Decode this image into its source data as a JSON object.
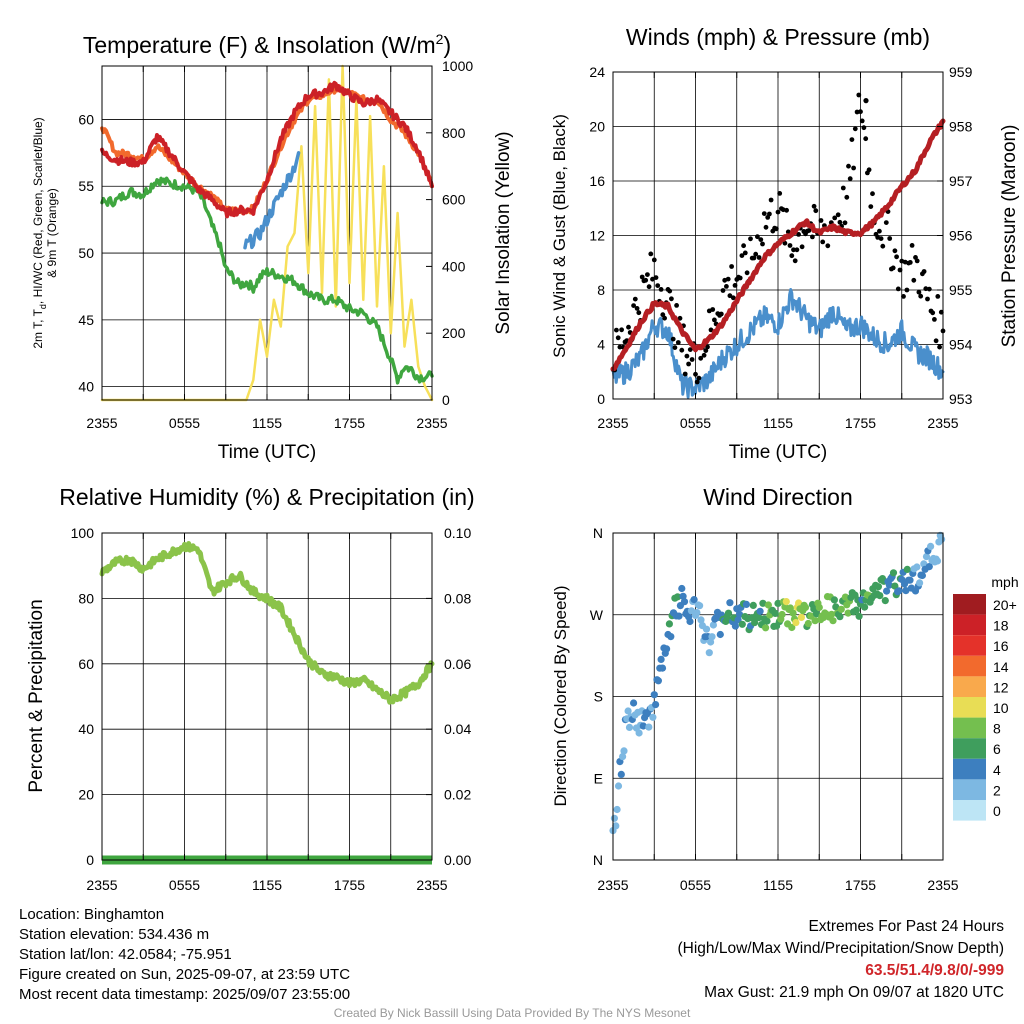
{
  "panels": {
    "temperature": {
      "title_main": "Temperature (F) & Insolation (W/m",
      "title_sup": "2",
      "title_end": ")",
      "ylabel_l1": "2m T, T",
      "ylabel_sub": "d",
      "ylabel_l1b": ", HI/WC (Red, Green, Scarlet/Blue)",
      "ylabel_l2": "& 9m T (Orange)",
      "ylabel_right": "Solar Insolation (Yellow)",
      "xlabel": "Time (UTC)"
    },
    "winds": {
      "title": "Winds (mph) & Pressure (mb)",
      "ylabel_left": "Sonic Wind & Gust (Blue, Black)",
      "ylabel_right": "Station Pressure (Maroon)",
      "xlabel": "Time (UTC)"
    },
    "humidity": {
      "title": "Relative Humidity (%) & Precipitation (in)",
      "ylabel": "Percent & Precipitation"
    },
    "direction": {
      "title": "Wind Direction",
      "ylabel": "Direction (Colored By Speed)",
      "legend_title": "mph",
      "legend_labels": [
        "20+",
        "18",
        "16",
        "14",
        "12",
        "10",
        "8",
        "6",
        "4",
        "2",
        "0"
      ],
      "legend_colors": [
        "#a01c20",
        "#cc2127",
        "#e4322a",
        "#f26a2d",
        "#f9a94c",
        "#e8dd55",
        "#74bf4f",
        "#3f9e5d",
        "#3d7fbf",
        "#7db8e2",
        "#bde5f5"
      ]
    }
  },
  "info": {
    "location": "Location: Binghamton",
    "elevation": "Station elevation: 534.436 m",
    "latlon": "Station lat/lon: 42.0584; -75.951",
    "created": "Figure created on Sun, 2025-09-07, at 23:59 UTC",
    "recent": "Most recent data timestamp: 2025/09/07 23:55:00"
  },
  "extremes": {
    "heading": "Extremes For Past 24 Hours",
    "subheading": "(High/Low/Max Wind/Precipitation/Snow Depth)",
    "values": "63.5/51.4/9.8/0/-999",
    "gust": "Max Gust: 21.9 mph On 09/07 at 1820 UTC"
  },
  "credit": "Created By Nick Bassill Using Data Provided By The NYS Mesonet",
  "chart_data": [
    {
      "type": "line",
      "title": "Temperature (F) & Insolation (W/m2)",
      "xlabel": "Time (UTC)",
      "x_ticks": [
        "2355",
        "0555",
        "1155",
        "1755",
        "2355"
      ],
      "xlim_hours": [
        0,
        24
      ],
      "ylim": [
        39,
        64
      ],
      "y_ticks": [
        40,
        45,
        50,
        55,
        60
      ],
      "y2lim": [
        0,
        1000
      ],
      "y2_ticks": [
        0,
        200,
        400,
        600,
        800,
        1000
      ],
      "colors": {
        "temp": "#cc2127",
        "dewpoint": "#3fa63f",
        "windchill": "#4a8fcc",
        "temp9m": "#f26a2d",
        "solar": "#f7e05a"
      },
      "series": [
        {
          "key": "temp9m",
          "x": [
            0,
            1,
            2,
            3,
            4,
            5,
            6,
            7,
            8,
            9,
            10,
            11,
            12,
            13,
            14,
            15,
            16,
            17,
            18,
            19,
            20,
            21,
            22,
            23,
            24
          ],
          "values": [
            59.5,
            57.5,
            57.4,
            57,
            58,
            57,
            56,
            55,
            54.3,
            53.2,
            53.2,
            53.3,
            55.5,
            58,
            60,
            61.5,
            61.8,
            62.3,
            62,
            61.5,
            61.5,
            60,
            59,
            57.5,
            55
          ]
        },
        {
          "key": "temp",
          "x": [
            0,
            1,
            2,
            3,
            4,
            5,
            6,
            7,
            8,
            9,
            10,
            11,
            12,
            13,
            14,
            15,
            16,
            17,
            18,
            19,
            20,
            21,
            22,
            23,
            24
          ],
          "values": [
            57.5,
            57,
            56.8,
            56.8,
            58.7,
            57.4,
            56,
            54.8,
            54,
            53,
            53.2,
            53.2,
            55.5,
            58.5,
            60.5,
            61.8,
            62,
            62.6,
            61.8,
            61.2,
            61.5,
            60.5,
            59.5,
            57.7,
            55
          ]
        },
        {
          "key": "windchill",
          "x": [
            10.4,
            11,
            11.5,
            12,
            12.5,
            13,
            13.5,
            14,
            14.3
          ],
          "values": [
            50.5,
            51,
            51.5,
            52.5,
            53.5,
            54.5,
            55.5,
            56.5,
            57.5
          ]
        },
        {
          "key": "dewpoint",
          "x": [
            0,
            1,
            2,
            3,
            4,
            5,
            6,
            7,
            7.5,
            8,
            8.5,
            9,
            9.5,
            10,
            10.5,
            11,
            11.5,
            12,
            13,
            14,
            15,
            16,
            17,
            18,
            19,
            20,
            20.5,
            21,
            21.5,
            22,
            22.5,
            23,
            24
          ],
          "values": [
            53.8,
            53.9,
            54.6,
            54.4,
            55.5,
            55.2,
            55,
            54.6,
            53.5,
            52,
            50.8,
            48.8,
            48.2,
            47.6,
            47.8,
            47.4,
            48.2,
            48.6,
            48.3,
            47.9,
            47,
            46.5,
            46.5,
            45.8,
            45.5,
            44.5,
            43.3,
            42,
            40.6,
            41.5,
            41.3,
            40.7,
            40.8
          ]
        },
        {
          "key": "solar",
          "x": [
            0,
            6,
            10.5,
            11,
            11.5,
            12,
            12.5,
            13,
            13.5,
            14,
            14.5,
            15,
            15.5,
            16,
            16.5,
            17,
            17.5,
            18,
            18.5,
            19,
            19.5,
            20,
            20.5,
            21,
            21.5,
            22,
            22.5,
            23,
            23.5,
            24
          ],
          "values": [
            0,
            0,
            0,
            60,
            240,
            130,
            300,
            220,
            460,
            500,
            760,
            380,
            880,
            320,
            960,
            280,
            1000,
            350,
            900,
            300,
            850,
            280,
            700,
            200,
            560,
            160,
            300,
            100,
            40,
            0
          ]
        }
      ]
    },
    {
      "type": "line",
      "title": "Winds (mph) & Pressure (mb)",
      "xlabel": "Time (UTC)",
      "x_ticks": [
        "2355",
        "0555",
        "1155",
        "1755",
        "2355"
      ],
      "xlim_hours": [
        0,
        24
      ],
      "ylim": [
        0,
        24
      ],
      "y_ticks": [
        0,
        4,
        8,
        12,
        16,
        20,
        24
      ],
      "y2lim": [
        953,
        959
      ],
      "y2_ticks": [
        953,
        954,
        955,
        956,
        957,
        958,
        959
      ],
      "colors": {
        "wind": "#4a8fcc",
        "gust": "#000000",
        "pressure": "#b51f23"
      },
      "series": [
        {
          "key": "wind",
          "x": [
            0,
            1,
            2,
            3,
            4,
            5,
            6,
            7,
            8,
            9,
            10,
            11,
            12,
            13,
            14,
            15,
            16,
            17,
            18,
            19,
            20,
            21,
            22,
            23,
            24
          ],
          "values": [
            1.5,
            2,
            3,
            5.5,
            5,
            1,
            0.8,
            1.5,
            3,
            4,
            5,
            6,
            5.5,
            7.5,
            6,
            5,
            6.5,
            5,
            5.5,
            4.5,
            4,
            5,
            3.5,
            3,
            2
          ]
        },
        {
          "key": "gust",
          "x": [
            0,
            1,
            2,
            3,
            4,
            5,
            6,
            7,
            8,
            9,
            10,
            11,
            12,
            13,
            14,
            15,
            16,
            17,
            18,
            19,
            20,
            21,
            22,
            23,
            24
          ],
          "values": [
            3,
            5,
            7.5,
            9.5,
            7,
            4,
            2.5,
            5,
            8,
            9,
            10,
            13,
            14,
            11,
            13,
            12,
            13,
            14.5,
            21.9,
            13.5,
            12,
            9,
            10,
            7,
            5
          ]
        },
        {
          "key": "pressure",
          "x": [
            0,
            1,
            2,
            3,
            4,
            5,
            6,
            7,
            8,
            9,
            10,
            11,
            12,
            13,
            14,
            15,
            16,
            17,
            18,
            19,
            20,
            21,
            22,
            23,
            24
          ],
          "values": [
            953.55,
            953.95,
            954.4,
            954.75,
            954.7,
            954.25,
            953.9,
            954.1,
            954.4,
            954.8,
            955.2,
            955.6,
            955.85,
            956.05,
            956.25,
            956.05,
            956.15,
            956.05,
            956.05,
            956.25,
            956.55,
            956.9,
            957.2,
            957.7,
            958.1
          ]
        }
      ]
    },
    {
      "type": "line",
      "title": "Relative Humidity (%) & Precipitation (in)",
      "x_ticks": [
        "2355",
        "0555",
        "1155",
        "1755",
        "2355"
      ],
      "xlim_hours": [
        0,
        24
      ],
      "ylim": [
        0,
        100
      ],
      "y_ticks": [
        0,
        20,
        40,
        60,
        80,
        100
      ],
      "y2lim": [
        0,
        0.1
      ],
      "y2_ticks": [
        "0.00",
        "0.02",
        "0.04",
        "0.06",
        "0.08",
        "0.10"
      ],
      "colors": {
        "rh": "#8bc34a",
        "precip": "#3fa63f"
      },
      "series": [
        {
          "key": "rh",
          "x": [
            0,
            1,
            2,
            3,
            4,
            5,
            6,
            7,
            8,
            9,
            10,
            11,
            12,
            13,
            14,
            15,
            16,
            17,
            18,
            19,
            20,
            21,
            22,
            23,
            24
          ],
          "values": [
            88,
            91,
            92,
            89,
            92,
            94,
            96,
            95,
            82,
            85,
            87,
            82,
            80,
            77,
            69,
            61,
            57,
            56,
            54,
            55,
            52,
            49,
            51,
            54,
            60
          ]
        },
        {
          "key": "precip",
          "x": [
            0,
            24
          ],
          "values": [
            0,
            0
          ]
        }
      ]
    },
    {
      "type": "scatter",
      "title": "Wind Direction",
      "x_ticks": [
        "2355",
        "0555",
        "1155",
        "1755",
        "2355"
      ],
      "xlim_hours": [
        0,
        24
      ],
      "y_ticks": [
        "N",
        "E",
        "S",
        "W",
        "N"
      ],
      "ylim_degrees": [
        0,
        360
      ],
      "series": [
        {
          "name": "direction",
          "x": [
            0,
            0.5,
            1,
            1.5,
            2,
            2.5,
            3,
            3.5,
            4,
            4.5,
            5,
            5.5,
            6,
            6.5,
            7,
            7.5,
            8,
            8.5,
            9,
            9.5,
            10,
            10.5,
            11,
            11.5,
            12,
            12.5,
            13,
            13.5,
            14,
            14.5,
            15,
            15.5,
            16,
            16.5,
            17,
            17.5,
            18,
            18.5,
            19,
            19.5,
            20,
            20.5,
            21,
            21.5,
            22,
            22.5,
            23,
            23.5,
            24
          ],
          "values": [
            20,
            95,
            155,
            160,
            150,
            155,
            175,
            210,
            240,
            275,
            285,
            270,
            275,
            260,
            235,
            270,
            255,
            270,
            265,
            270,
            265,
            270,
            270,
            268,
            270,
            272,
            268,
            275,
            270,
            268,
            272,
            280,
            275,
            270,
            280,
            285,
            280,
            290,
            288,
            300,
            295,
            305,
            300,
            315,
            310,
            320,
            330,
            340,
            355
          ],
          "speeds": [
            1,
            2,
            2,
            2,
            2,
            3,
            3,
            4,
            4,
            5,
            4,
            3,
            2,
            2,
            2,
            3,
            4,
            5,
            4,
            5,
            4,
            5,
            6,
            7,
            6,
            8,
            7,
            9,
            7,
            6,
            7,
            8,
            7,
            6,
            7,
            6,
            5,
            6,
            5,
            6,
            4,
            5,
            4,
            4,
            3,
            3,
            2,
            2,
            1
          ]
        }
      ]
    }
  ]
}
